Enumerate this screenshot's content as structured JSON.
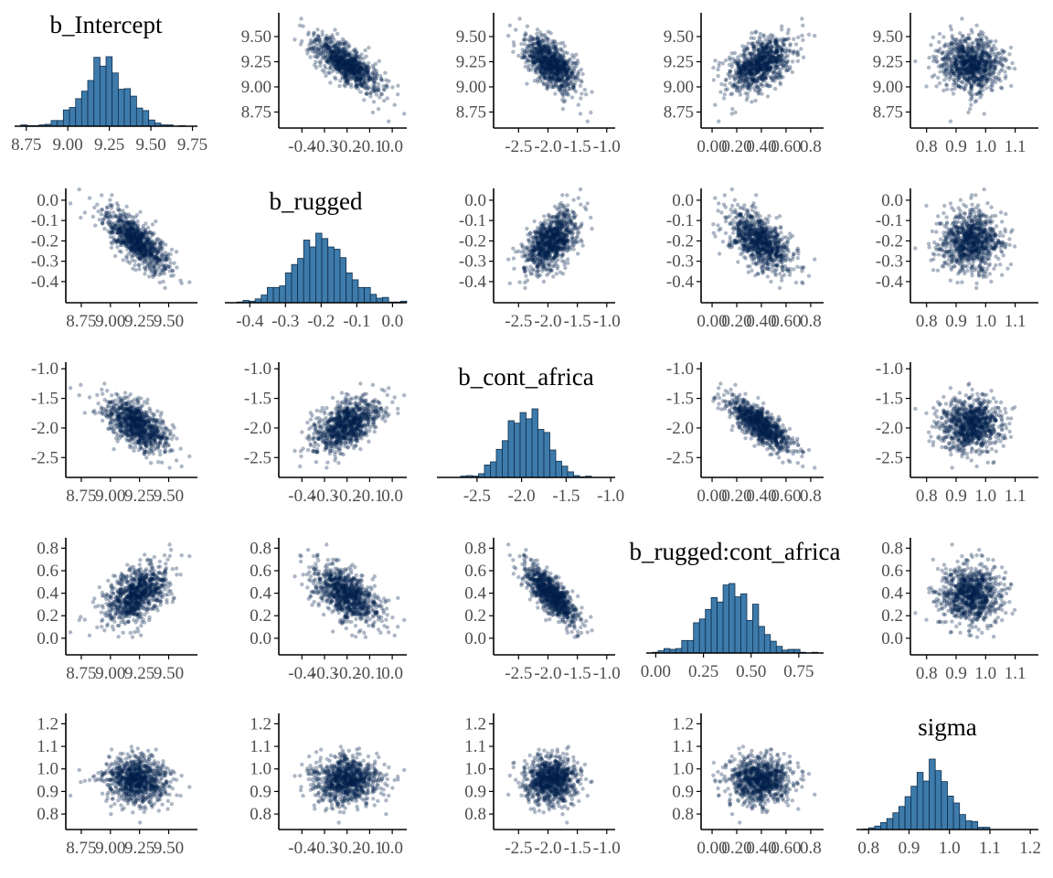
{
  "chart_data": {
    "type": "pairs",
    "description_free": true,
    "variables": [
      {
        "name": "b_Intercept",
        "mean": 9.22,
        "sd": 0.14,
        "ticks": [
          8.75,
          9.0,
          9.25,
          9.5,
          9.75
        ],
        "tick_labels": [
          "8.75",
          "9.00",
          "9.25",
          "9.50",
          "9.75"
        ],
        "lim": [
          8.68,
          9.78
        ]
      },
      {
        "name": "b_rugged",
        "mean": -0.2,
        "sd": 0.075,
        "ticks": [
          -0.4,
          -0.3,
          -0.2,
          -0.1,
          0.0
        ],
        "tick_labels": [
          "-0.4",
          "-0.3",
          "-0.2",
          "-0.1",
          "0.0"
        ],
        "lim": [
          -0.47,
          0.04
        ]
      },
      {
        "name": "b_cont_africa",
        "mean": -1.95,
        "sd": 0.22,
        "ticks": [
          -2.5,
          -2.0,
          -1.5,
          -1.0
        ],
        "tick_labels": [
          "-2.5",
          "-2.0",
          "-1.5",
          "-1.0"
        ],
        "lim": [
          -2.95,
          -0.95
        ]
      },
      {
        "name": "b_rugged:cont_africa",
        "mean": 0.39,
        "sd": 0.13,
        "ticks": [
          0.0,
          0.25,
          0.5,
          0.75
        ],
        "tick_labels": [
          "0.00",
          "0.25",
          "0.50",
          "0.75"
        ],
        "lim": [
          -0.05,
          0.88
        ]
      },
      {
        "name": "sigma",
        "mean": 0.95,
        "sd": 0.05,
        "ticks": [
          0.8,
          0.9,
          1.0,
          1.1,
          1.2
        ],
        "tick_labels": [
          "0.8",
          "0.9",
          "1.0",
          "1.1",
          "1.2"
        ],
        "lim": [
          0.77,
          1.22
        ]
      }
    ],
    "scatter_axes": [
      {
        "x_ticks": [
          8.75,
          9.0,
          9.25,
          9.5
        ],
        "x_tick_labels": [
          "8.75",
          "9.00",
          "9.25",
          "9.50"
        ],
        "x_lim": [
          8.68,
          9.7
        ],
        "y_ticks": [
          8.75,
          9.0,
          9.25,
          9.5
        ],
        "y_tick_labels": [
          "8.75",
          "9.00",
          "9.25",
          "9.50"
        ],
        "y_lim": [
          8.7,
          9.7
        ]
      },
      {
        "x_ticks": [
          -0.4,
          -0.3,
          -0.2,
          -0.1,
          0.0
        ],
        "x_tick_labels": [
          "-0.4",
          "-0.3",
          "-0.2",
          "-0.1",
          "0.0"
        ],
        "x_lim": [
          -0.47,
          0.04
        ],
        "y_ticks": [
          -0.4,
          -0.3,
          -0.2,
          -0.1,
          0.0
        ],
        "y_tick_labels": [
          "-0.4",
          "-0.3",
          "-0.2",
          "-0.1",
          "0.0"
        ],
        "y_lim": [
          -0.45,
          0.04
        ]
      },
      {
        "x_ticks": [
          -2.5,
          -2.0,
          -1.5,
          -1.0
        ],
        "x_tick_labels": [
          "-2.5",
          "-2.0",
          "-1.5",
          "-1.0"
        ],
        "x_lim": [
          -2.8,
          -0.95
        ],
        "y_ticks": [
          -2.5,
          -2.0,
          -1.5,
          -1.0
        ],
        "y_tick_labels": [
          "-2.5",
          "-2.0",
          "-1.5",
          "-1.0"
        ],
        "y_lim": [
          -2.65,
          -0.95
        ]
      },
      {
        "x_ticks": [
          0.0,
          0.2,
          0.4,
          0.6,
          0.8
        ],
        "x_tick_labels": [
          "0.00",
          "0.20",
          "0.40",
          "0.60",
          "0.8"
        ],
        "x_lim": [
          -0.03,
          0.86
        ],
        "y_ticks": [
          0.0,
          0.2,
          0.4,
          0.6,
          0.8
        ],
        "y_tick_labels": [
          "0.0",
          "0.2",
          "0.4",
          "0.6",
          "0.8"
        ],
        "y_lim": [
          -0.05,
          0.86
        ]
      },
      {
        "x_ticks": [
          0.8,
          0.9,
          1.0,
          1.1
        ],
        "x_tick_labels": [
          "0.8",
          "0.9",
          "1.0",
          "1.1"
        ],
        "x_lim": [
          0.77,
          1.16
        ],
        "y_ticks": [
          0.8,
          0.9,
          1.0,
          1.1,
          1.2
        ],
        "y_tick_labels": [
          "0.8",
          "0.9",
          "1.0",
          "1.1",
          "1.2"
        ],
        "y_lim": [
          0.78,
          1.23
        ]
      }
    ],
    "overrides": {
      "row_y": {
        "0": {
          "ticks": [
            8.75,
            9.0,
            9.25,
            9.5
          ],
          "tick_labels": [
            "8.75",
            "9.00",
            "9.25",
            "9.50"
          ]
        },
        "1": {
          "ticks": [
            -0.4,
            -0.3,
            -0.2,
            -0.1,
            0.0
          ],
          "tick_labels": [
            "-0.4",
            "-0.3",
            "-0.2",
            "-0.1",
            "0.0"
          ]
        },
        "2": {
          "ticks": [
            -2.5,
            -2.0,
            -1.5,
            -1.0
          ],
          "tick_labels": [
            "-2.5",
            "-2.0",
            "-1.5",
            "-1.0"
          ]
        },
        "3": {
          "ticks": [
            0.0,
            0.2,
            0.4,
            0.6,
            0.8
          ],
          "tick_labels": [
            "0.0",
            "0.2",
            "0.4",
            "0.6",
            "0.8"
          ]
        },
        "4": {
          "ticks": [
            0.8,
            0.9,
            1.0,
            1.1,
            1.2
          ],
          "tick_labels": [
            "0.8",
            "0.9",
            "1.0",
            "1.1",
            "1.2"
          ]
        }
      },
      "col_x": {
        "0": {
          "ticks": [
            8.75,
            9.0,
            9.25,
            9.5
          ],
          "tick_labels": [
            "8.75",
            "9.00",
            "9.25",
            "9.50"
          ]
        },
        "1": {
          "ticks": [
            -0.4,
            -0.3,
            -0.2,
            -0.1,
            0.0
          ],
          "tick_labels": [
            "-0.4",
            "-0.3",
            "-0.2",
            "-0.1",
            "0.0"
          ]
        },
        "2": {
          "ticks": [
            -2.5,
            -2.0,
            -1.5,
            -1.0
          ],
          "tick_labels": [
            "-2.5",
            "-2.0",
            "-1.5",
            "-1.0"
          ]
        },
        "3": {
          "ticks": [
            0.0,
            0.2,
            0.4,
            0.6,
            0.8
          ],
          "tick_labels": [
            "0.00",
            "0.20",
            "0.40",
            "0.60",
            "0.8"
          ]
        },
        "4": {
          "ticks": [
            0.8,
            0.9,
            1.0,
            1.1
          ],
          "tick_labels": [
            "0.8",
            "0.9",
            "1.0",
            "1.1"
          ]
        }
      }
    },
    "correlations": [
      [
        1.0,
        -0.75,
        -0.6,
        0.5,
        0.0
      ],
      [
        -0.75,
        1.0,
        0.5,
        -0.55,
        0.0
      ],
      [
        -0.6,
        0.5,
        1.0,
        -0.78,
        0.0
      ],
      [
        0.5,
        -0.55,
        -0.78,
        1.0,
        0.0
      ],
      [
        0.0,
        0.0,
        0.0,
        0.0,
        1.0
      ]
    ],
    "n_draws": 900,
    "histogram_bins": 30,
    "colors": {
      "point": "#011f4b",
      "bar_fill": "#3e7bab",
      "bar_edge": "#0d2e4d",
      "axis": "#000000",
      "tick_label": "#4d4d4d",
      "title": "#000000"
    }
  }
}
